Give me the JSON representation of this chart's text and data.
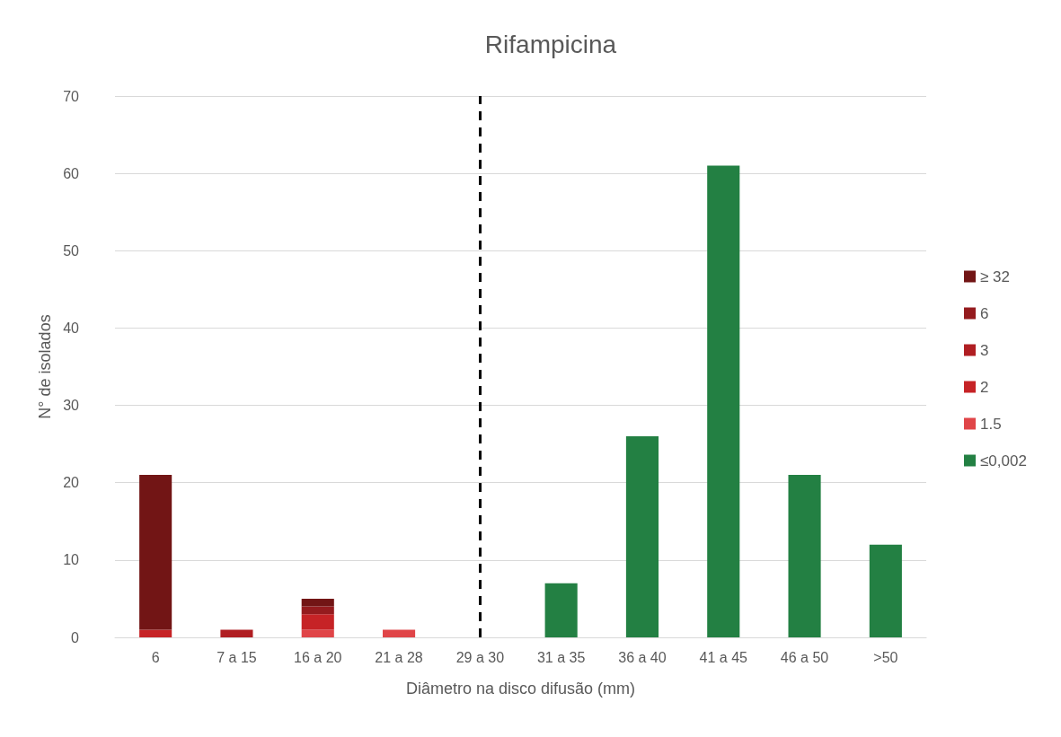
{
  "chart_data": {
    "type": "bar",
    "title": "Rifampicina",
    "xlabel": "Diâmetro na disco difusão (mm)",
    "ylabel": "N° de isolados",
    "categories": [
      "6",
      "7 a 15",
      "16 a 20",
      "21 a 28",
      "29 a 30",
      "31 a 35",
      "36 a 40",
      "41 a 45",
      "46 a 50",
      ">50"
    ],
    "stacked": true,
    "series": [
      {
        "name": "≤0,002",
        "color": "#238043",
        "values": [
          0,
          0,
          0,
          0,
          0,
          7,
          26,
          61,
          21,
          12
        ]
      },
      {
        "name": "1.5",
        "color": "#e04548",
        "values": [
          0,
          0,
          1,
          1,
          0,
          0,
          0,
          0,
          0,
          0
        ]
      },
      {
        "name": "2",
        "color": "#c62326",
        "values": [
          1,
          0,
          2,
          0,
          0,
          0,
          0,
          0,
          0,
          0
        ]
      },
      {
        "name": "3",
        "color": "#b01e22",
        "values": [
          0,
          1,
          0,
          0,
          0,
          0,
          0,
          0,
          0,
          0
        ]
      },
      {
        "name": "6",
        "color": "#951b1e",
        "values": [
          0,
          0,
          1,
          0,
          0,
          0,
          0,
          0,
          0,
          0
        ]
      },
      {
        "name": "≥ 32",
        "color": "#721515",
        "values": [
          20,
          0,
          1,
          0,
          0,
          0,
          0,
          0,
          0,
          0
        ]
      }
    ],
    "ylim": [
      0,
      70
    ],
    "yticks": [
      0,
      10,
      20,
      30,
      40,
      50,
      60,
      70
    ],
    "grid": "y",
    "legend": "right",
    "ref_lines": [
      {
        "axis": "x",
        "value": "29 a 30",
        "color": "#000000",
        "line_style": "dashed"
      }
    ]
  }
}
